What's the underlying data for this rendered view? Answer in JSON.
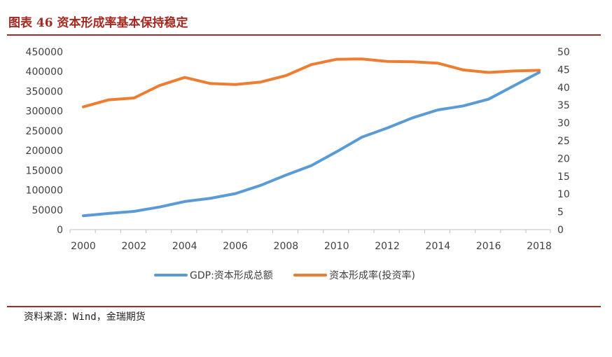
{
  "header": {
    "title": "图表 46   资本形成率基本保持稳定"
  },
  "footer": {
    "source": "资料来源：Wind，金瑞期货"
  },
  "colors": {
    "accent": "#a42a22",
    "gdp_series": "#5b9bd5",
    "rate_series": "#ed7d31",
    "axis": "#bfbfbf",
    "text": "#404040"
  },
  "chart_data": {
    "type": "line",
    "x": [
      2000,
      2001,
      2002,
      2003,
      2004,
      2005,
      2006,
      2007,
      2008,
      2009,
      2010,
      2011,
      2012,
      2013,
      2014,
      2015,
      2016,
      2017,
      2018
    ],
    "x_ticks": [
      "2000",
      "2002",
      "2004",
      "2006",
      "2008",
      "2010",
      "2012",
      "2014",
      "2016",
      "2018"
    ],
    "y_left_ticks": [
      "0",
      "50000",
      "100000",
      "150000",
      "200000",
      "250000",
      "300000",
      "350000",
      "400000",
      "450000"
    ],
    "y_right_ticks": [
      "0",
      "5",
      "10",
      "15",
      "20",
      "25",
      "30",
      "35",
      "40",
      "45",
      "50"
    ],
    "ylim_left": [
      0,
      450000
    ],
    "ylim_right": [
      0,
      50
    ],
    "grid": false,
    "legend_position": "bottom",
    "series": [
      {
        "name": "GDP:资本形成总额",
        "axis": "left",
        "color": "#5b9bd5",
        "values": [
          35000,
          41000,
          46000,
          57000,
          71000,
          79000,
          91000,
          112000,
          138000,
          162000,
          197000,
          234000,
          257000,
          283000,
          303000,
          313000,
          330000,
          364000,
          398000
        ]
      },
      {
        "name": "资本形成率(投资率)",
        "axis": "right",
        "color": "#ed7d31",
        "values": [
          34.5,
          36.5,
          37.0,
          40.5,
          42.8,
          41.1,
          40.8,
          41.5,
          43.3,
          46.4,
          47.9,
          48.0,
          47.3,
          47.2,
          46.8,
          44.9,
          44.2,
          44.6,
          44.8
        ]
      }
    ]
  }
}
